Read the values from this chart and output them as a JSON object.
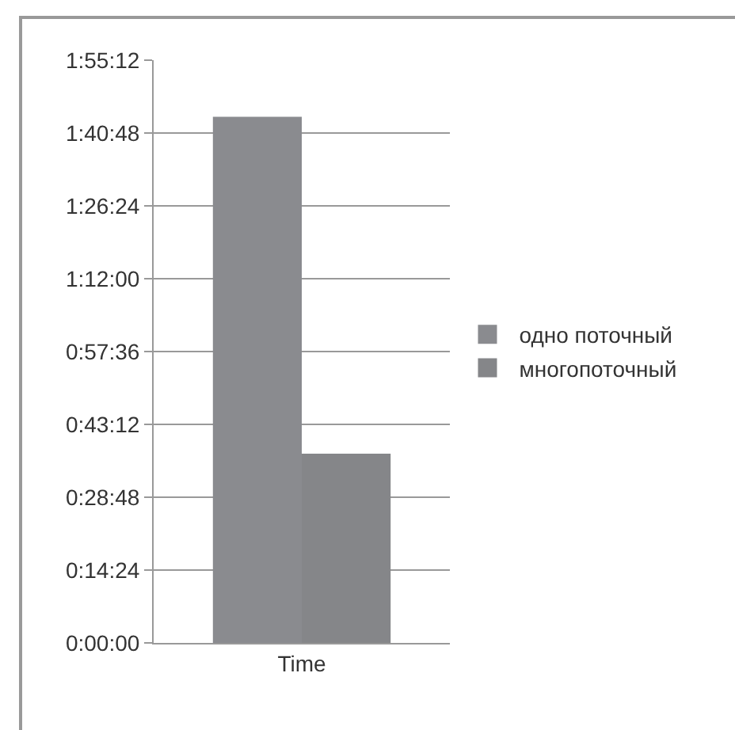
{
  "chart_data": {
    "type": "bar",
    "categories": [
      "Time"
    ],
    "series": [
      {
        "name": "одно поточный",
        "color": "#8a8b8f",
        "values": [
          104
        ]
      },
      {
        "name": "многопоточный",
        "color": "#858689",
        "values": [
          37.4
        ]
      }
    ],
    "ylim": [
      0,
      115.2
    ],
    "yticks": [
      {
        "value": 0,
        "label": "0:00:00"
      },
      {
        "value": 14.4,
        "label": "0:14:24"
      },
      {
        "value": 28.8,
        "label": "0:28:48"
      },
      {
        "value": 43.2,
        "label": "0:43:12"
      },
      {
        "value": 57.6,
        "label": "0:57:36"
      },
      {
        "value": 72,
        "label": "1:12:00"
      },
      {
        "value": 86.4,
        "label": "1:26:24"
      },
      {
        "value": 100.8,
        "label": "1:40:48"
      },
      {
        "value": 115.2,
        "label": "1:55:12"
      }
    ],
    "grid": "y",
    "legend": "right"
  }
}
